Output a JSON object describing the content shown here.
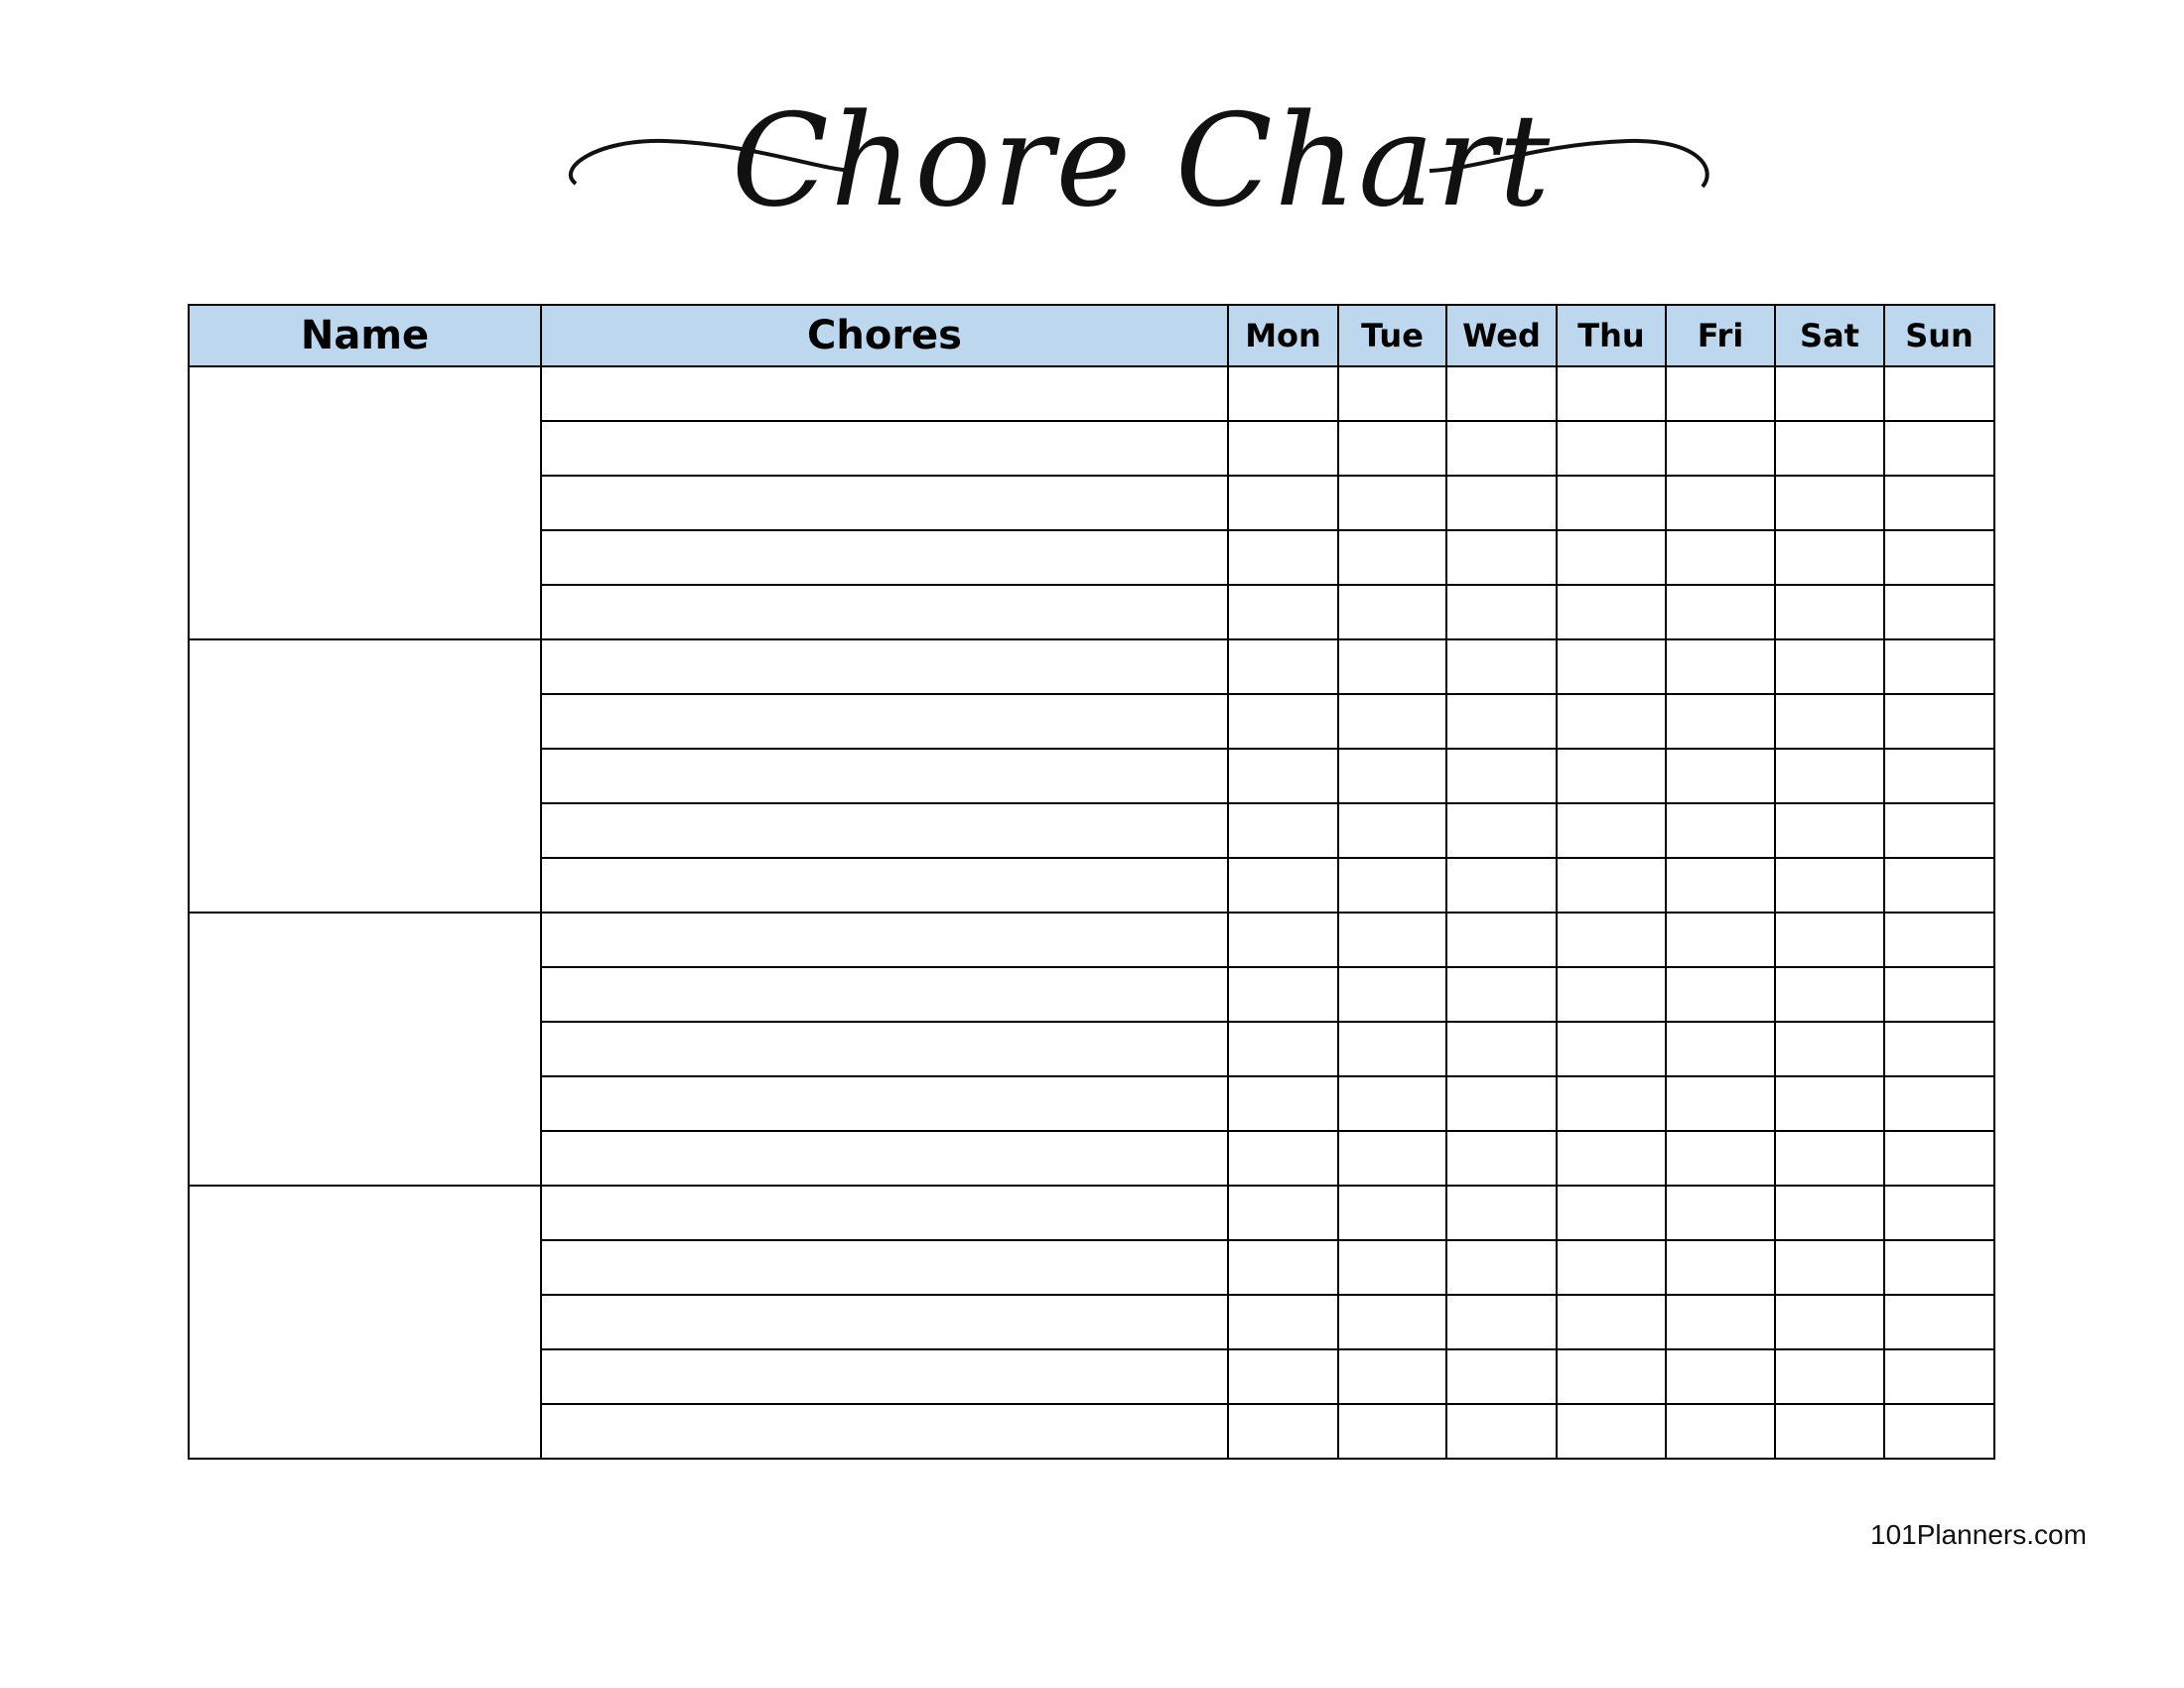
{
  "title": "Chore Chart",
  "table": {
    "headers": {
      "name": "Name",
      "chores": "Chores"
    },
    "days": [
      "Mon",
      "Tue",
      "Wed",
      "Thu",
      "Fri",
      "Sat",
      "Sun"
    ],
    "people": [
      {
        "name": "",
        "chores": [
          "",
          "",
          "",
          "",
          ""
        ]
      },
      {
        "name": "",
        "chores": [
          "",
          "",
          "",
          "",
          ""
        ]
      },
      {
        "name": "",
        "chores": [
          "",
          "",
          "",
          "",
          ""
        ]
      },
      {
        "name": "",
        "chores": [
          "",
          "",
          "",
          "",
          ""
        ]
      }
    ]
  },
  "colors": {
    "header_bg": "#bdd7ee",
    "border": "#000000"
  },
  "footer": "101Planners.com"
}
